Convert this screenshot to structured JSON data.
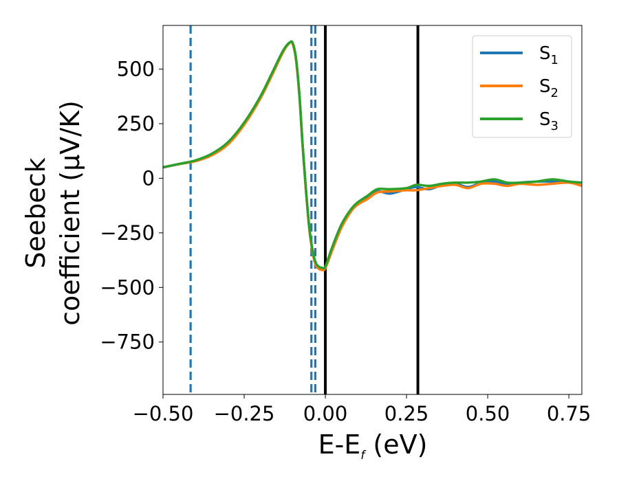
{
  "chart_data": {
    "type": "line",
    "xlabel": {
      "main": "E-E",
      "sub": "f",
      "suffix": " (eV)"
    },
    "ylabel": {
      "line1": "Seebeck",
      "line2": "coefficient  (μV/K)"
    },
    "xlim": [
      -0.5,
      0.79
    ],
    "ylim": [
      -990,
      700
    ],
    "xticks": [
      -0.5,
      -0.25,
      0.0,
      0.25,
      0.5,
      0.75
    ],
    "xtick_labels": [
      "−0.50",
      "−0.25",
      "0.00",
      "0.25",
      "0.50",
      "0.75"
    ],
    "yticks": [
      500,
      250,
      0,
      -250,
      -500,
      -750
    ],
    "ytick_labels": [
      "500",
      "250",
      "0",
      "−250",
      "−500",
      "−750"
    ],
    "legend_position": "top-right",
    "series": [
      {
        "name": "S",
        "name_sub": "1",
        "color": "#1f77b4",
        "x": [
          -0.5,
          -0.45,
          -0.4,
          -0.35,
          -0.3,
          -0.25,
          -0.2,
          -0.16,
          -0.13,
          -0.11,
          -0.1,
          -0.09,
          -0.08,
          -0.07,
          -0.06,
          -0.05,
          -0.04,
          -0.03,
          -0.02,
          -0.01,
          0.0,
          0.02,
          0.05,
          0.08,
          0.1,
          0.13,
          0.16,
          0.2,
          0.25,
          0.28,
          0.32,
          0.36,
          0.4,
          0.44,
          0.48,
          0.52,
          0.56,
          0.6,
          0.65,
          0.7,
          0.75,
          0.79
        ],
        "y": [
          50,
          65,
          80,
          110,
          160,
          250,
          370,
          490,
          580,
          620,
          615,
          540,
          380,
          150,
          -50,
          -220,
          -330,
          -390,
          -410,
          -415,
          -410,
          -330,
          -220,
          -150,
          -120,
          -90,
          -60,
          -70,
          -50,
          -40,
          -50,
          -30,
          -25,
          -40,
          -20,
          -15,
          -30,
          -20,
          -15,
          -15,
          -20,
          -20
        ]
      },
      {
        "name": "S",
        "name_sub": "2",
        "color": "#ff7f0e",
        "x": [
          -0.5,
          -0.45,
          -0.4,
          -0.35,
          -0.3,
          -0.25,
          -0.2,
          -0.16,
          -0.13,
          -0.11,
          -0.1,
          -0.09,
          -0.08,
          -0.07,
          -0.06,
          -0.05,
          -0.04,
          -0.03,
          -0.02,
          -0.01,
          0.0,
          0.02,
          0.05,
          0.08,
          0.1,
          0.13,
          0.16,
          0.2,
          0.25,
          0.28,
          0.32,
          0.36,
          0.4,
          0.44,
          0.48,
          0.52,
          0.56,
          0.6,
          0.65,
          0.7,
          0.75,
          0.79
        ],
        "y": [
          50,
          65,
          78,
          105,
          155,
          245,
          365,
          485,
          578,
          620,
          612,
          535,
          375,
          145,
          -55,
          -225,
          -335,
          -395,
          -415,
          -420,
          -412,
          -335,
          -225,
          -150,
          -120,
          -95,
          -65,
          -60,
          -55,
          -55,
          -45,
          -35,
          -30,
          -45,
          -25,
          -25,
          -35,
          -25,
          -30,
          -25,
          -20,
          -35
        ]
      },
      {
        "name": "S",
        "name_sub": "3",
        "color": "#2ca02c",
        "x": [
          -0.5,
          -0.45,
          -0.4,
          -0.35,
          -0.3,
          -0.25,
          -0.2,
          -0.16,
          -0.13,
          -0.11,
          -0.1,
          -0.09,
          -0.08,
          -0.07,
          -0.06,
          -0.05,
          -0.04,
          -0.03,
          -0.02,
          -0.01,
          0.0,
          0.02,
          0.05,
          0.08,
          0.1,
          0.13,
          0.16,
          0.2,
          0.25,
          0.28,
          0.32,
          0.36,
          0.4,
          0.44,
          0.48,
          0.52,
          0.56,
          0.6,
          0.65,
          0.7,
          0.75,
          0.79
        ],
        "y": [
          50,
          66,
          82,
          112,
          165,
          255,
          375,
          495,
          585,
          622,
          618,
          545,
          385,
          155,
          -45,
          -215,
          -325,
          -385,
          -405,
          -410,
          -405,
          -320,
          -210,
          -140,
          -110,
          -80,
          -50,
          -50,
          -45,
          -30,
          -35,
          -25,
          -20,
          -20,
          -15,
          -5,
          -20,
          -20,
          -15,
          -5,
          -15,
          -20
        ]
      }
    ],
    "vertical_lines": [
      {
        "x": -0.415,
        "style": "dashed",
        "color": "#1f77b4"
      },
      {
        "x": -0.043,
        "style": "dashed",
        "color": "#1f77b4"
      },
      {
        "x": -0.031,
        "style": "dashed",
        "color": "#1f77b4"
      },
      {
        "x": 0.0,
        "style": "solid",
        "color": "#000000"
      },
      {
        "x": 0.285,
        "style": "solid",
        "color": "#000000"
      }
    ]
  }
}
